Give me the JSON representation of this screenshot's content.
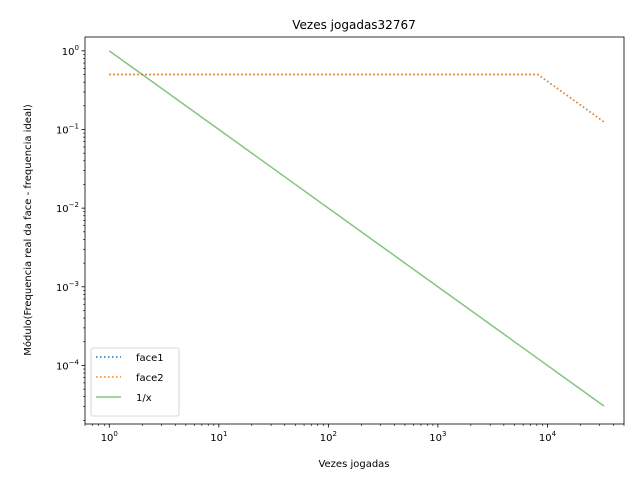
{
  "chart_data": {
    "type": "line",
    "title": "Vezes jogadas32767",
    "xlabel": "Vezes jogadas",
    "ylabel": "Módulo(Frequencia real da face - frequencia ideal)",
    "xscale": "log",
    "yscale": "log",
    "xlim": [
      0.6,
      50000
    ],
    "ylim": [
      1.8e-05,
      1.5
    ],
    "x_ticks": [
      {
        "value": 1,
        "base": "10",
        "exp": "0"
      },
      {
        "value": 10,
        "base": "10",
        "exp": "1"
      },
      {
        "value": 100,
        "base": "10",
        "exp": "2"
      },
      {
        "value": 1000,
        "base": "10",
        "exp": "3"
      },
      {
        "value": 10000,
        "base": "10",
        "exp": "4"
      }
    ],
    "y_ticks": [
      {
        "value": 1,
        "base": "10",
        "exp": "0"
      },
      {
        "value": 0.1,
        "base": "10",
        "exp": "−1"
      },
      {
        "value": 0.01,
        "base": "10",
        "exp": "−2"
      },
      {
        "value": 0.001,
        "base": "10",
        "exp": "−3"
      },
      {
        "value": 0.0001,
        "base": "10",
        "exp": "−4"
      }
    ],
    "grid": false,
    "legend_position": "lower-left",
    "series": [
      {
        "name": "face1",
        "color": "#1f77b4",
        "style": "dotted",
        "x": [
          1,
          8192,
          32767
        ],
        "y": [
          0.5,
          0.5,
          0.125
        ]
      },
      {
        "name": "face2",
        "color": "#ff7f0e",
        "style": "dotted",
        "x": [
          1,
          8192,
          32767
        ],
        "y": [
          0.5,
          0.5,
          0.125
        ]
      },
      {
        "name": "1/x",
        "color": "#2ca02c",
        "style": "solid",
        "x": [
          1,
          32767
        ],
        "y": [
          1,
          3.05e-05
        ]
      }
    ]
  }
}
